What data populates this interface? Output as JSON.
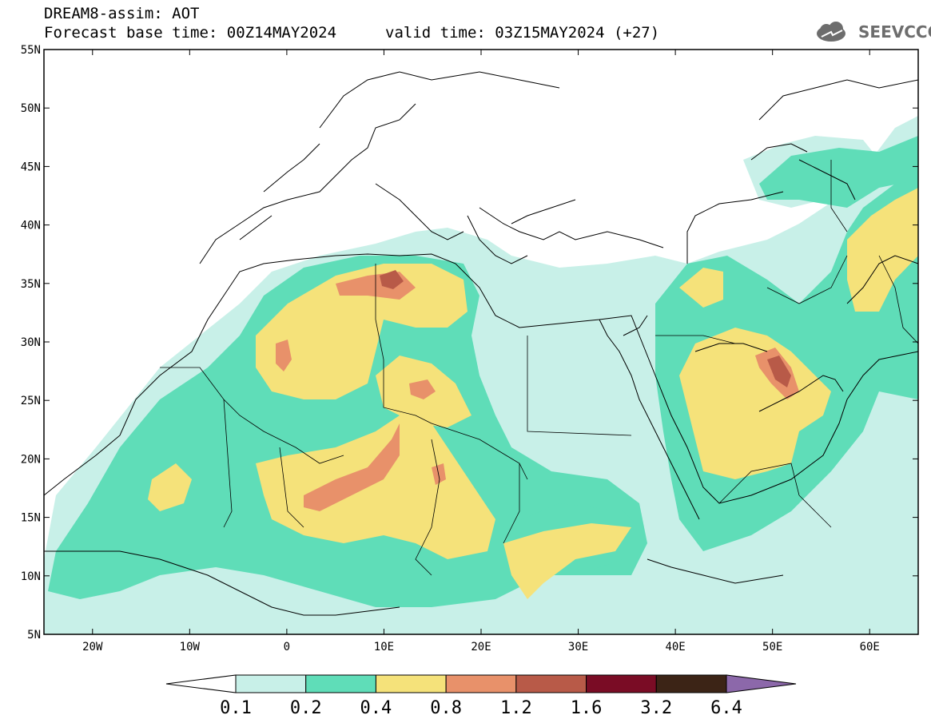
{
  "header": {
    "line1": "DREAM8-assim: AOT",
    "line2": "Forecast base time: 00Z14MAY2024",
    "valid": "valid time: 03Z15MAY2024 (+27)"
  },
  "logo": {
    "text": "SEEVCCC",
    "icon": "cloud-icon",
    "color": "#6d6d6d"
  },
  "map": {
    "variable": "AOT",
    "lon_range": [
      -25,
      65
    ],
    "lat_range": [
      5,
      55
    ],
    "lat_labels": [
      "5N",
      "10N",
      "15N",
      "20N",
      "25N",
      "30N",
      "35N",
      "40N",
      "45N",
      "50N",
      "55N"
    ],
    "lon_labels": [
      "20W",
      "10W",
      "0",
      "10E",
      "20E",
      "30E",
      "40E",
      "50E",
      "60E"
    ]
  },
  "colorbar": {
    "labels": [
      "0.1",
      "0.2",
      "0.4",
      "0.8",
      "1.2",
      "1.6",
      "3.2",
      "6.4"
    ],
    "colors": [
      "#ffffff",
      "#c8f0e8",
      "#5fddb8",
      "#f5e27a",
      "#e8916a",
      "#b85a48",
      "#7a0c25",
      "#3c2416",
      "#8c68aa"
    ]
  }
}
